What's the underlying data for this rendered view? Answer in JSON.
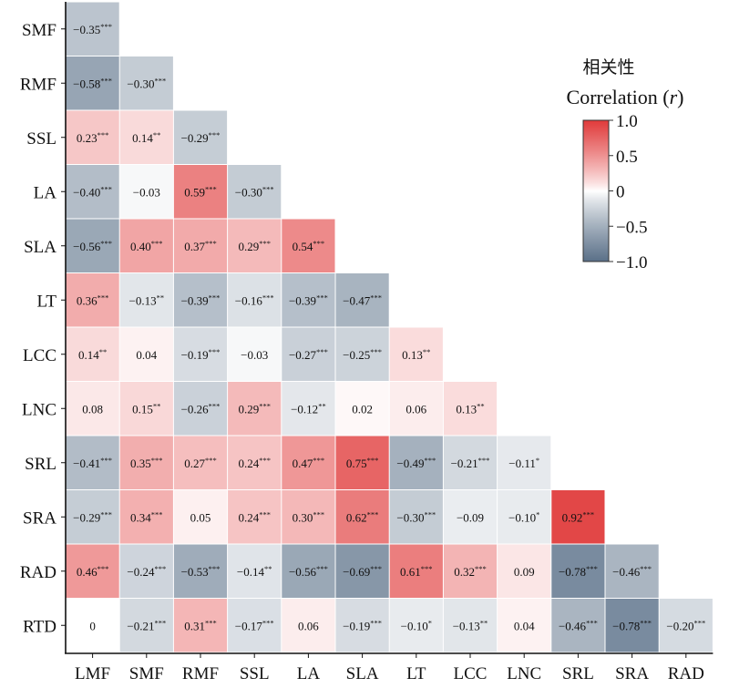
{
  "chart_data": {
    "type": "heatmap",
    "variables": [
      "SMF",
      "RMF",
      "SSL",
      "LA",
      "SLA",
      "LT",
      "LCC",
      "LNC",
      "SRL",
      "SRA",
      "RAD",
      "RTD"
    ],
    "column_labels": [
      "LMF",
      "SMF",
      "RMF",
      "SSL",
      "LA",
      "SLA",
      "LT",
      "LCC",
      "LNC",
      "SRL",
      "SRA",
      "RAD"
    ],
    "row_labels": [
      "SMF",
      "RMF",
      "SSL",
      "LA",
      "SLA",
      "LT",
      "LCC",
      "LNC",
      "SRL",
      "SRA",
      "RAD",
      "RTD"
    ],
    "rows": [
      [
        {
          "v": -0.35,
          "s": "***"
        }
      ],
      [
        {
          "v": -0.58,
          "s": "***"
        },
        {
          "v": -0.3,
          "s": "***"
        }
      ],
      [
        {
          "v": 0.23,
          "s": "***"
        },
        {
          "v": 0.14,
          "s": "**"
        },
        {
          "v": -0.29,
          "s": "***"
        }
      ],
      [
        {
          "v": -0.4,
          "s": "***"
        },
        {
          "v": -0.03,
          "s": ""
        },
        {
          "v": 0.59,
          "s": "***"
        },
        {
          "v": -0.3,
          "s": "***"
        }
      ],
      [
        {
          "v": -0.56,
          "s": "***"
        },
        {
          "v": 0.4,
          "s": "***"
        },
        {
          "v": 0.37,
          "s": "***"
        },
        {
          "v": 0.29,
          "s": "***"
        },
        {
          "v": 0.54,
          "s": "***"
        }
      ],
      [
        {
          "v": 0.36,
          "s": "***"
        },
        {
          "v": -0.13,
          "s": "**"
        },
        {
          "v": -0.39,
          "s": "***"
        },
        {
          "v": -0.16,
          "s": "***"
        },
        {
          "v": -0.39,
          "s": "***"
        },
        {
          "v": -0.47,
          "s": "***"
        }
      ],
      [
        {
          "v": 0.14,
          "s": "**"
        },
        {
          "v": 0.04,
          "s": ""
        },
        {
          "v": -0.19,
          "s": "***"
        },
        {
          "v": -0.03,
          "s": ""
        },
        {
          "v": -0.27,
          "s": "***"
        },
        {
          "v": -0.25,
          "s": "***"
        },
        {
          "v": 0.13,
          "s": "**"
        }
      ],
      [
        {
          "v": 0.08,
          "s": ""
        },
        {
          "v": 0.15,
          "s": "**"
        },
        {
          "v": -0.26,
          "s": "***"
        },
        {
          "v": 0.29,
          "s": "***"
        },
        {
          "v": -0.12,
          "s": "**"
        },
        {
          "v": 0.02,
          "s": ""
        },
        {
          "v": 0.06,
          "s": ""
        },
        {
          "v": 0.13,
          "s": "**"
        }
      ],
      [
        {
          "v": -0.41,
          "s": "***"
        },
        {
          "v": 0.35,
          "s": "***"
        },
        {
          "v": 0.27,
          "s": "***"
        },
        {
          "v": 0.24,
          "s": "***"
        },
        {
          "v": 0.47,
          "s": "***"
        },
        {
          "v": 0.75,
          "s": "***"
        },
        {
          "v": -0.49,
          "s": "***"
        },
        {
          "v": -0.21,
          "s": "***"
        },
        {
          "v": -0.11,
          "s": "*"
        }
      ],
      [
        {
          "v": -0.29,
          "s": "***"
        },
        {
          "v": 0.34,
          "s": "***"
        },
        {
          "v": 0.05,
          "s": ""
        },
        {
          "v": 0.24,
          "s": "***"
        },
        {
          "v": 0.3,
          "s": "***"
        },
        {
          "v": 0.62,
          "s": "***"
        },
        {
          "v": -0.3,
          "s": "***"
        },
        {
          "v": -0.09,
          "s": ""
        },
        {
          "v": -0.1,
          "s": "*"
        },
        {
          "v": 0.92,
          "s": "***"
        }
      ],
      [
        {
          "v": 0.46,
          "s": "***"
        },
        {
          "v": -0.24,
          "s": "***"
        },
        {
          "v": -0.53,
          "s": "***"
        },
        {
          "v": -0.14,
          "s": "**"
        },
        {
          "v": -0.56,
          "s": "***"
        },
        {
          "v": -0.69,
          "s": "***"
        },
        {
          "v": 0.61,
          "s": "***"
        },
        {
          "v": 0.32,
          "s": "***"
        },
        {
          "v": 0.09,
          "s": ""
        },
        {
          "v": -0.78,
          "s": "***"
        },
        {
          "v": -0.46,
          "s": "***"
        }
      ],
      [
        {
          "v": 0,
          "s": ""
        },
        {
          "v": -0.21,
          "s": "***"
        },
        {
          "v": 0.31,
          "s": "***"
        },
        {
          "v": -0.17,
          "s": "***"
        },
        {
          "v": 0.06,
          "s": ""
        },
        {
          "v": -0.19,
          "s": "***"
        },
        {
          "v": -0.1,
          "s": "*"
        },
        {
          "v": -0.13,
          "s": "**"
        },
        {
          "v": 0.04,
          "s": ""
        },
        {
          "v": -0.46,
          "s": "***"
        },
        {
          "v": -0.78,
          "s": "***"
        },
        {
          "v": -0.2,
          "s": "***"
        }
      ]
    ],
    "legend": {
      "title_cn": "相关性",
      "title_prefix": "Correlation (",
      "title_var": "r",
      "title_suffix": ")",
      "ticks": [
        1.0,
        0.5,
        0,
        -0.5,
        -1.0
      ],
      "tick_labels": [
        "1.0",
        "0.5",
        "0",
        "−0.5",
        "−1.0"
      ],
      "range": [
        -1.0,
        1.0
      ]
    },
    "colors": {
      "positive": "#e03a3a",
      "zero": "#ffffff",
      "negative": "#5a7088"
    }
  }
}
